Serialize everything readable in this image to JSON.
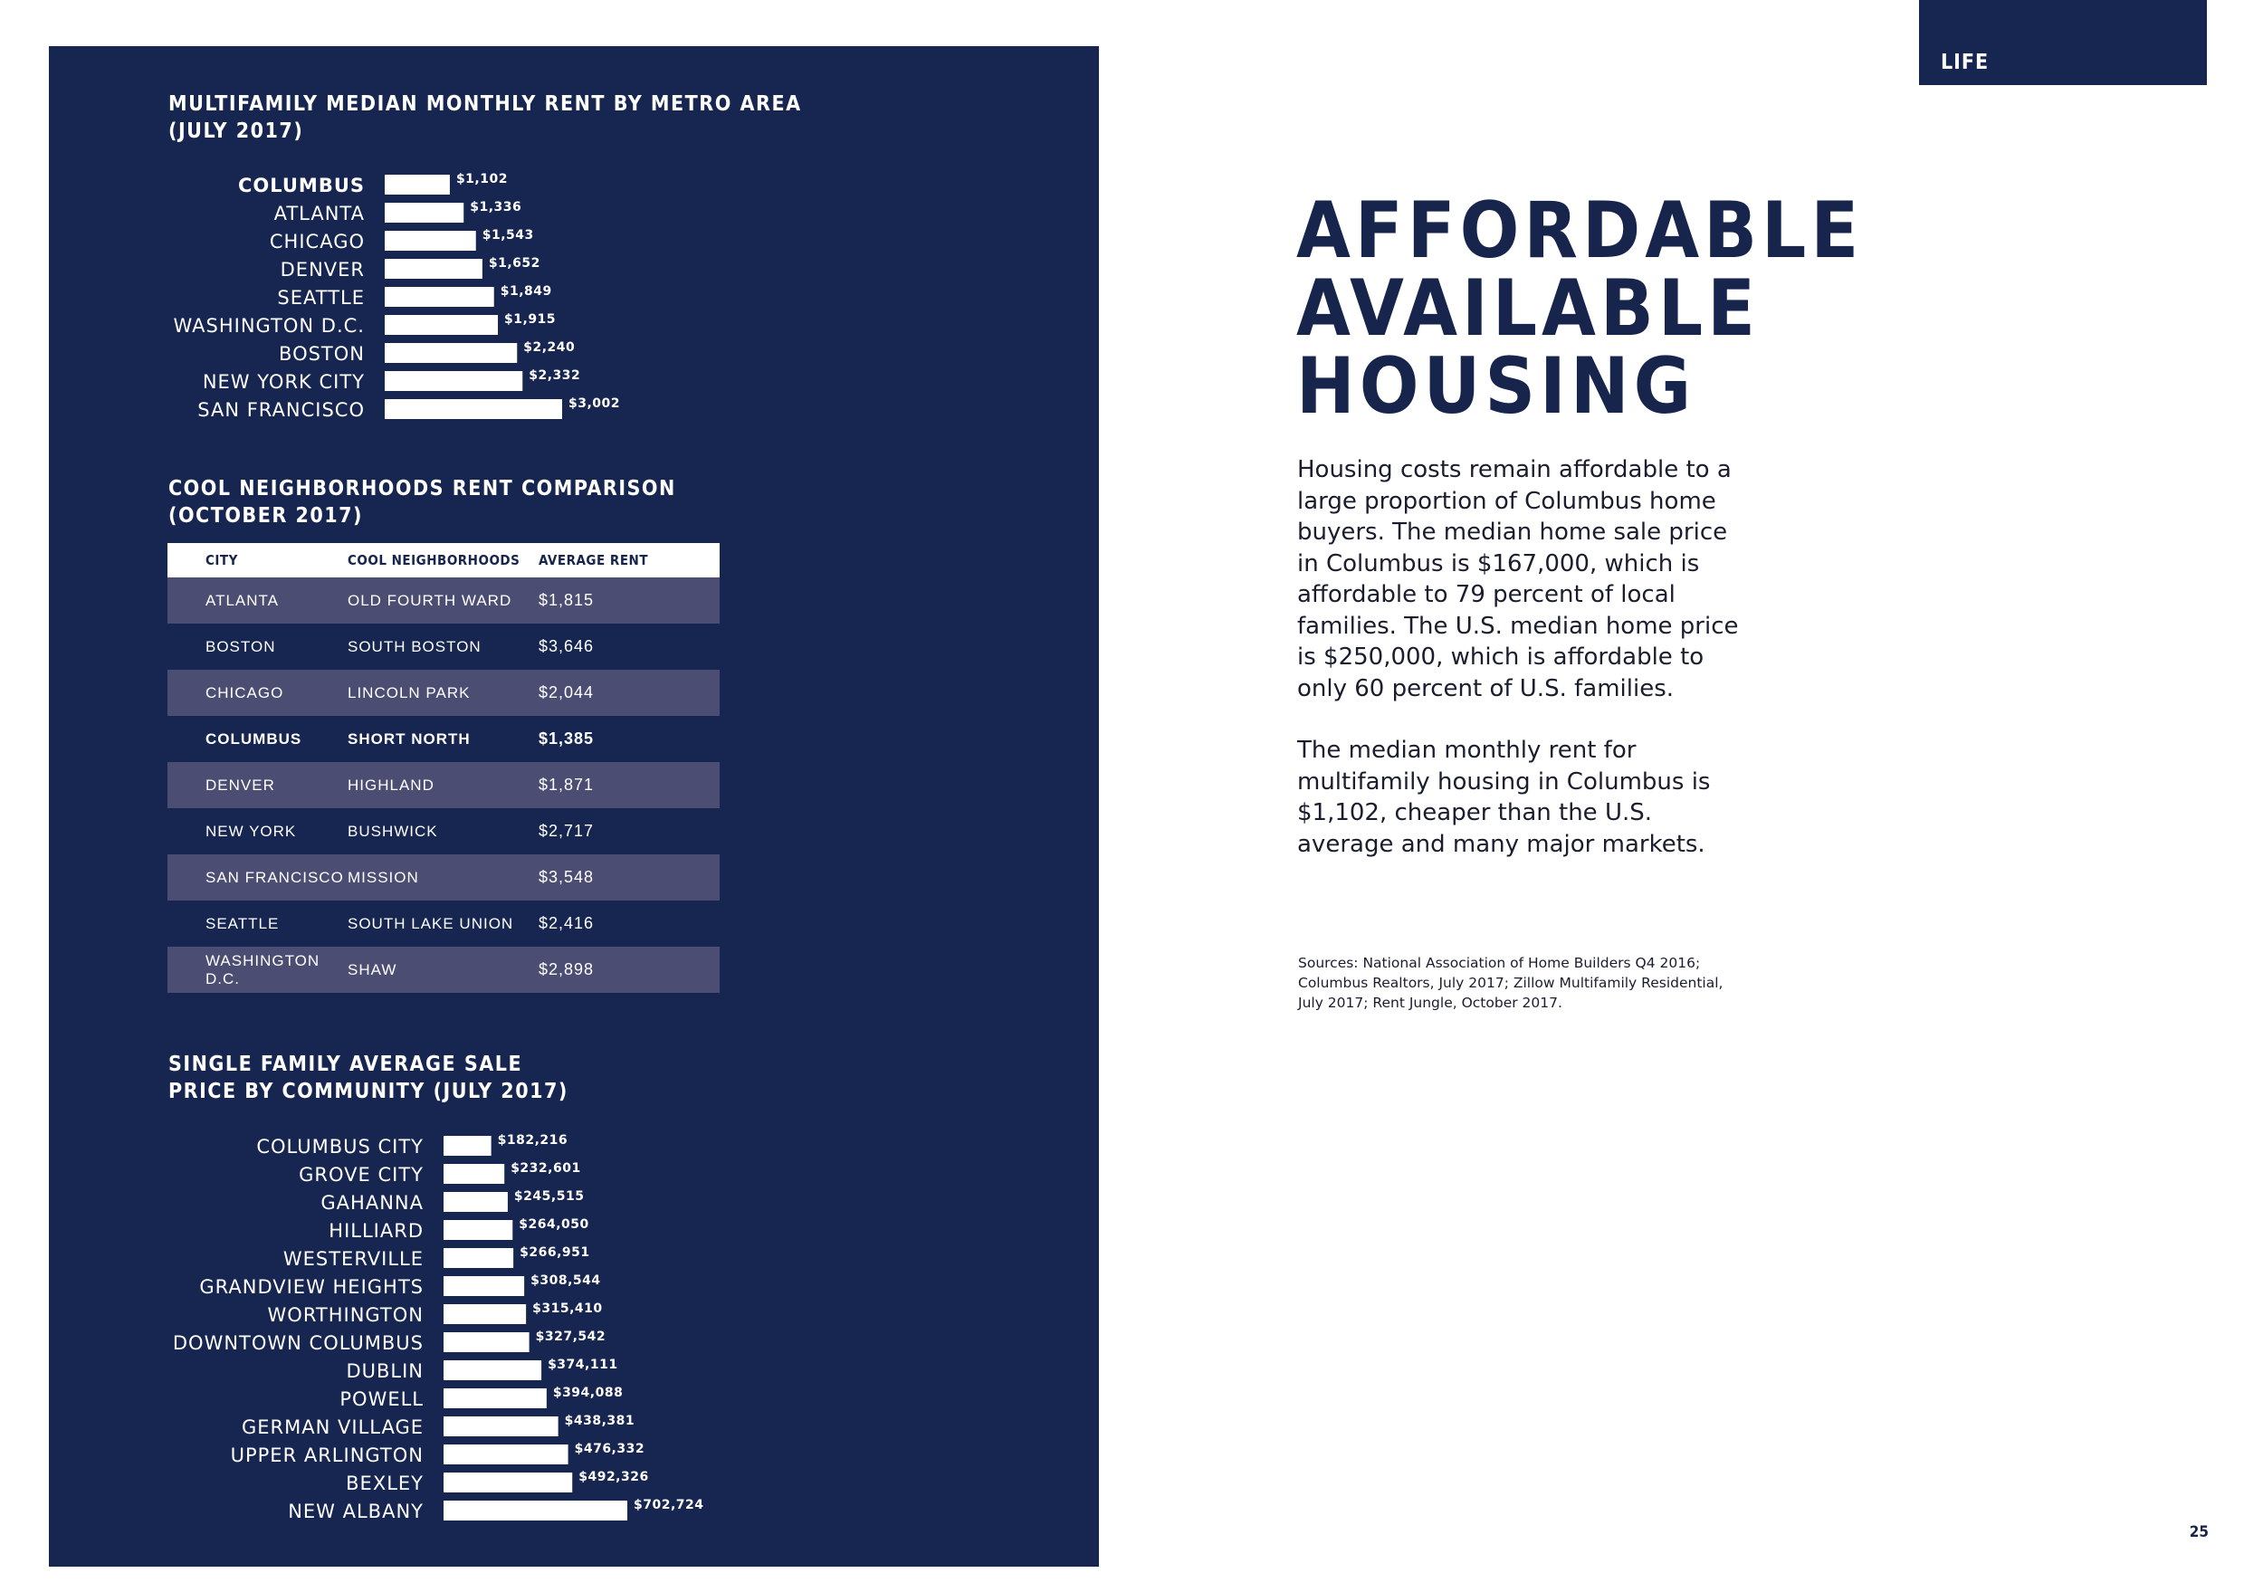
{
  "tab": {
    "label": "LIFE"
  },
  "page_number": "25",
  "headline": [
    "AFFORDABLE",
    "AVAILABLE",
    "HOUSING"
  ],
  "paragraphs": [
    "Housing costs remain affordable to a large proportion of Columbus home buyers. The median home sale price in Columbus is $167,000, which is affordable to 79 percent of local families. The U.S. median home price is $250,000, which is affordable to only 60 percent of U.S. families.",
    "The median monthly rent for multifamily housing in Columbus is $1,102, cheaper than the U.S. average and many major markets."
  ],
  "sources": "Sources: National Association of Home Builders Q4 2016; Columbus Realtors, July 2017; Zillow Multifamily Residential, July 2017; Rent Jungle, October 2017.",
  "rent_table": {
    "title": "COOL NEIGHBORHOODS RENT COMPARISON\n(OCTOBER 2017)",
    "headers": [
      "CITY",
      "COOL NEIGHBORHOODS",
      "AVERAGE RENT"
    ],
    "rows": [
      [
        "ATLANTA",
        "OLD FOURTH WARD",
        "$1,815"
      ],
      [
        "BOSTON",
        "SOUTH BOSTON",
        "$3,646"
      ],
      [
        "CHICAGO",
        "LINCOLN PARK",
        "$2,044"
      ],
      [
        "COLUMBUS",
        "SHORT NORTH",
        "$1,385"
      ],
      [
        "DENVER",
        "HIGHLAND",
        "$1,871"
      ],
      [
        "NEW YORK",
        "BUSHWICK",
        "$2,717"
      ],
      [
        "SAN FRANCISCO",
        "MISSION",
        "$3,548"
      ],
      [
        "SEATTLE",
        "SOUTH LAKE UNION",
        "$2,416"
      ],
      [
        "WASHINGTON D.C.",
        "SHAW",
        "$2,898"
      ]
    ],
    "highlight_row": 3
  },
  "chart_data": [
    {
      "type": "bar",
      "orientation": "horizontal",
      "title": "MULTIFAMILY MEDIAN MONTHLY RENT BY METRO AREA\n(JULY 2017)",
      "categories": [
        "COLUMBUS",
        "ATLANTA",
        "CHICAGO",
        "DENVER",
        "SEATTLE",
        "WASHINGTON D.C.",
        "BOSTON",
        "NEW YORK CITY",
        "SAN FRANCISCO"
      ],
      "values": [
        1102,
        1336,
        1543,
        1652,
        1849,
        1915,
        2240,
        2332,
        3002
      ],
      "value_labels": [
        "$1,102",
        "$1,336",
        "$1,543",
        "$1,652",
        "$1,849",
        "$1,915",
        "$2,240",
        "$2,332",
        "$3,002"
      ],
      "highlight_category": "COLUMBUS",
      "xlim": [
        0,
        3002
      ],
      "bar_color": "#ffffff"
    },
    {
      "type": "bar",
      "orientation": "horizontal",
      "title": "SINGLE FAMILY AVERAGE SALE\nPRICE BY COMMUNITY (JULY 2017)",
      "categories": [
        "COLUMBUS CITY",
        "GROVE CITY",
        "GAHANNA",
        "HILLIARD",
        "WESTERVILLE",
        "GRANDVIEW HEIGHTS",
        "WORTHINGTON",
        "DOWNTOWN COLUMBUS",
        "DUBLIN",
        "POWELL",
        "GERMAN VILLAGE",
        "UPPER ARLINGTON",
        "BEXLEY",
        "NEW ALBANY"
      ],
      "values": [
        182216,
        232601,
        245515,
        264050,
        266951,
        308544,
        315410,
        327542,
        374111,
        394088,
        438381,
        476332,
        492326,
        702724
      ],
      "value_labels": [
        "$182,216",
        "$232,601",
        "$245,515",
        "$264,050",
        "$266,951",
        "$308,544",
        "$315,410",
        "$327,542",
        "$374,111",
        "$394,088",
        "$438,381",
        "$476,332",
        "$492,326",
        "$702,724"
      ],
      "xlim": [
        0,
        702724
      ],
      "bar_color": "#ffffff"
    }
  ],
  "colors": {
    "navy": "#172650",
    "row_shade": "#4b4d72",
    "white": "#ffffff"
  }
}
